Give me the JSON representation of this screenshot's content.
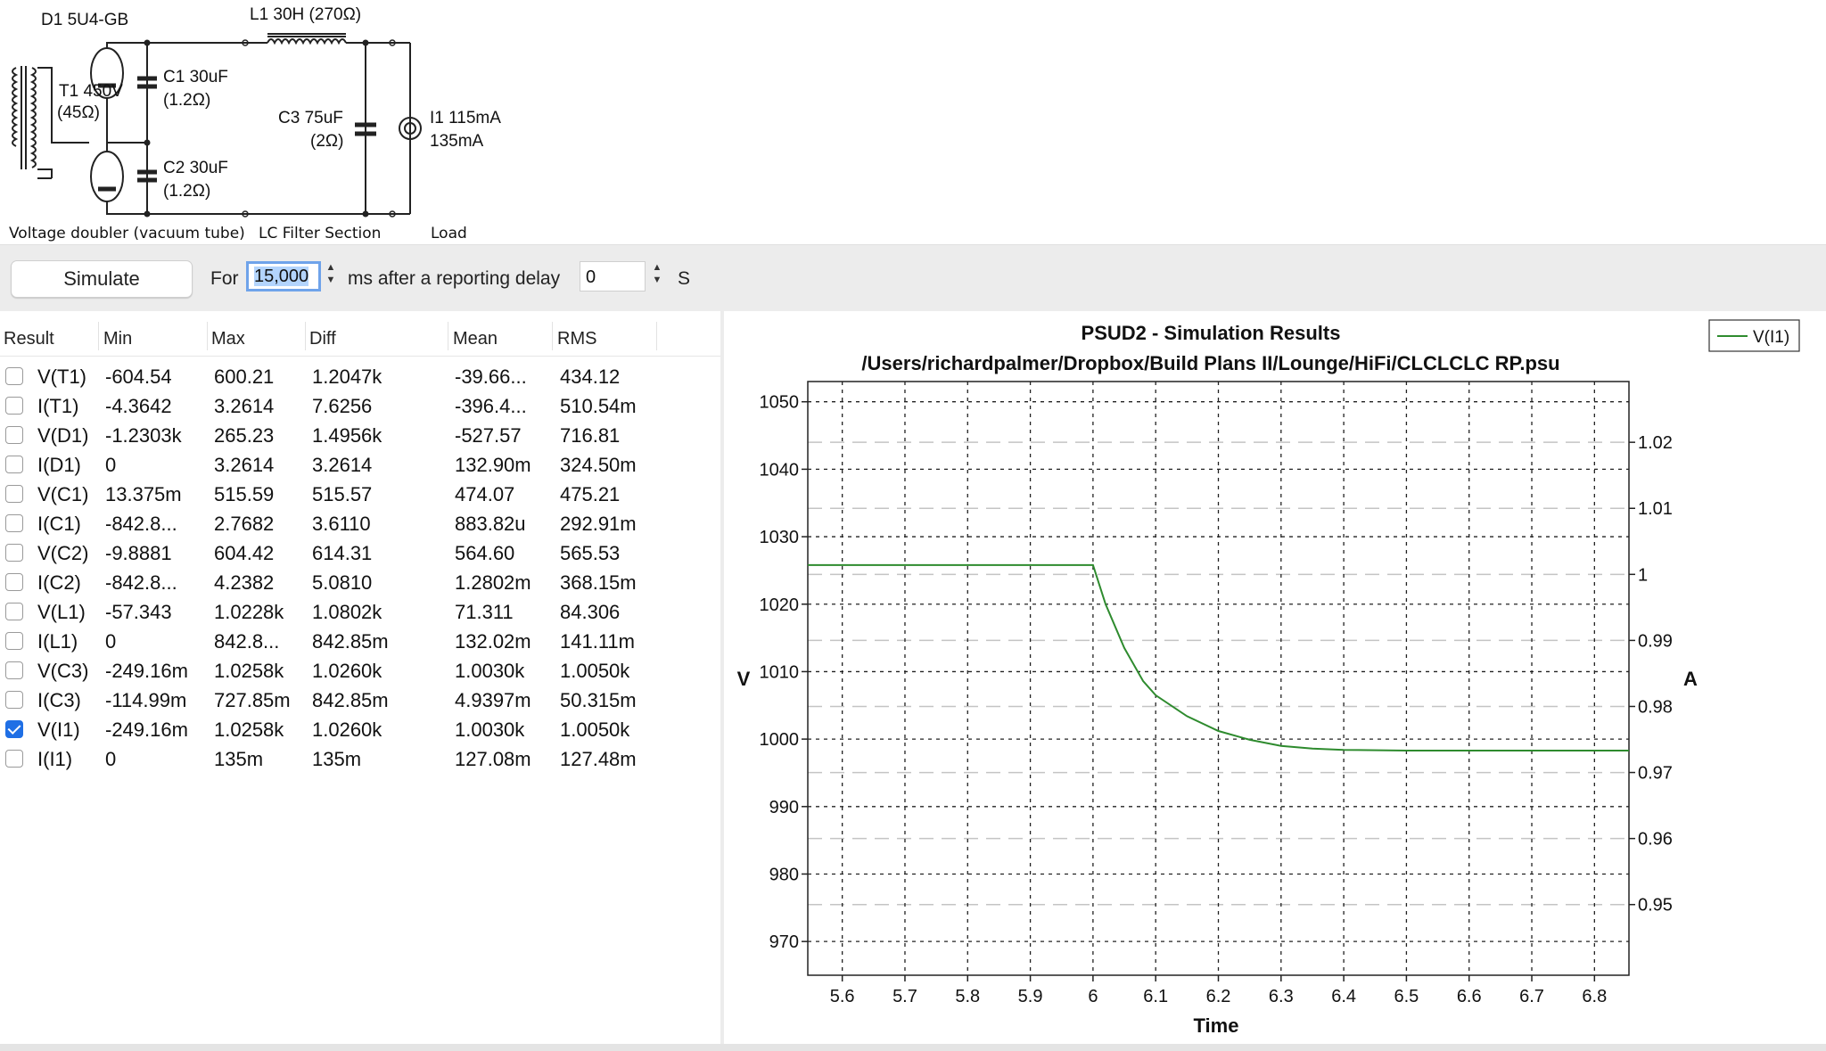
{
  "schematic": {
    "rectifier_label": "D1 5U4-GB",
    "inductor_label": "L1 30H (270Ω)",
    "transformer_label_1": "T1 450V",
    "transformer_label_2": "(45Ω)",
    "c1_label_1": "C1 30uF",
    "c1_label_2": "(1.2Ω)",
    "c2_label_1": "C2 30uF",
    "c2_label_2": "(1.2Ω)",
    "c3_label_1": "C3 75uF",
    "c3_label_2": "(2Ω)",
    "load_label_1": "I1 115mA",
    "load_label_2": "135mA",
    "sections": [
      "Voltage doubler (vacuum tube)",
      "LC Filter Section",
      "Load"
    ]
  },
  "toolbar": {
    "simulate_label": "Simulate",
    "for_label": "For",
    "duration_value": "15,000",
    "ms_label": "ms after a reporting delay",
    "delay_value": "0",
    "s_label": "S"
  },
  "results": {
    "headers": [
      "Result",
      "Min",
      "Max",
      "Diff",
      "Mean",
      "RMS"
    ],
    "rows": [
      {
        "name": "V(T1)",
        "min": "-604.54",
        "max": "600.21",
        "diff": "1.2047k",
        "mean": "-39.66...",
        "rms": "434.12",
        "checked": false
      },
      {
        "name": "I(T1)",
        "min": "-4.3642",
        "max": "3.2614",
        "diff": "7.6256",
        "mean": "-396.4...",
        "rms": "510.54m",
        "checked": false
      },
      {
        "name": "V(D1)",
        "min": "-1.2303k",
        "max": "265.23",
        "diff": "1.4956k",
        "mean": "-527.57",
        "rms": "716.81",
        "checked": false
      },
      {
        "name": "I(D1)",
        "min": "0",
        "max": "3.2614",
        "diff": "3.2614",
        "mean": "132.90m",
        "rms": "324.50m",
        "checked": false
      },
      {
        "name": "V(C1)",
        "min": "13.375m",
        "max": "515.59",
        "diff": "515.57",
        "mean": "474.07",
        "rms": "475.21",
        "checked": false
      },
      {
        "name": "I(C1)",
        "min": "-842.8...",
        "max": "2.7682",
        "diff": "3.6110",
        "mean": "883.82u",
        "rms": "292.91m",
        "checked": false
      },
      {
        "name": "V(C2)",
        "min": "-9.8881",
        "max": "604.42",
        "diff": "614.31",
        "mean": "564.60",
        "rms": "565.53",
        "checked": false
      },
      {
        "name": "I(C2)",
        "min": "-842.8...",
        "max": "4.2382",
        "diff": "5.0810",
        "mean": "1.2802m",
        "rms": "368.15m",
        "checked": false
      },
      {
        "name": "V(L1)",
        "min": "-57.343",
        "max": "1.0228k",
        "diff": "1.0802k",
        "mean": "71.311",
        "rms": "84.306",
        "checked": false
      },
      {
        "name": "I(L1)",
        "min": "0",
        "max": "842.8...",
        "diff": "842.85m",
        "mean": "132.02m",
        "rms": "141.11m",
        "checked": false
      },
      {
        "name": "V(C3)",
        "min": "-249.16m",
        "max": "1.0258k",
        "diff": "1.0260k",
        "mean": "1.0030k",
        "rms": "1.0050k",
        "checked": false
      },
      {
        "name": "I(C3)",
        "min": "-114.99m",
        "max": "727.85m",
        "diff": "842.85m",
        "mean": "4.9397m",
        "rms": "50.315m",
        "checked": false
      },
      {
        "name": "V(I1)",
        "min": "-249.16m",
        "max": "1.0258k",
        "diff": "1.0260k",
        "mean": "1.0030k",
        "rms": "1.0050k",
        "checked": true
      },
      {
        "name": "I(I1)",
        "min": "0",
        "max": "135m",
        "diff": "135m",
        "mean": "127.08m",
        "rms": "127.48m",
        "checked": false
      }
    ]
  },
  "chart_data": {
    "type": "line",
    "title": "PSUD2 - Simulation Results",
    "subtitle": "/Users/richardpalmer/Dropbox/Build Plans II/Lounge/HiFi/CLCLCLC RP.psu",
    "xlabel": "Time",
    "ylabel": "V",
    "y2label": "A",
    "xlim": [
      5.545,
      6.855
    ],
    "ylim": [
      965,
      1053
    ],
    "y2lim": [
      0.9393,
      1.0292
    ],
    "xticks": [
      5.6,
      5.7,
      5.8,
      5.9,
      6,
      6.1,
      6.2,
      6.3,
      6.4,
      6.5,
      6.6,
      6.7,
      6.8
    ],
    "xtick_labels": [
      "5.6",
      "5.7",
      "5.8",
      "5.9",
      "6",
      "6.1",
      "6.2",
      "6.3",
      "6.4",
      "6.5",
      "6.6",
      "6.7",
      "6.8"
    ],
    "yticks": [
      970,
      980,
      990,
      1000,
      1010,
      1020,
      1030,
      1040,
      1050
    ],
    "ytick_labels": [
      "970",
      "980",
      "990",
      "1000",
      "1010",
      "1020",
      "1030",
      "1040",
      "1050"
    ],
    "y2ticks": [
      0.95,
      0.96,
      0.97,
      0.98,
      0.99,
      1.0,
      1.01,
      1.02
    ],
    "y2tick_labels": [
      "0.95",
      "0.96",
      "0.97",
      "0.98",
      "0.99",
      "1",
      "1.01",
      "1.02"
    ],
    "grid": true,
    "legend_position": "top-right",
    "series": [
      {
        "name": "V(I1)",
        "color": "#2e8b2e",
        "x": [
          5.545,
          5.7,
          5.9,
          6.0,
          6.02,
          6.05,
          6.08,
          6.1,
          6.15,
          6.2,
          6.25,
          6.3,
          6.35,
          6.4,
          6.5,
          6.6,
          6.7,
          6.855
        ],
        "y": [
          1025.8,
          1025.8,
          1025.8,
          1025.8,
          1020.0,
          1013.5,
          1008.6,
          1006.5,
          1003.4,
          1001.2,
          999.9,
          999.0,
          998.6,
          998.4,
          998.3,
          998.3,
          998.3,
          998.3
        ]
      }
    ]
  }
}
